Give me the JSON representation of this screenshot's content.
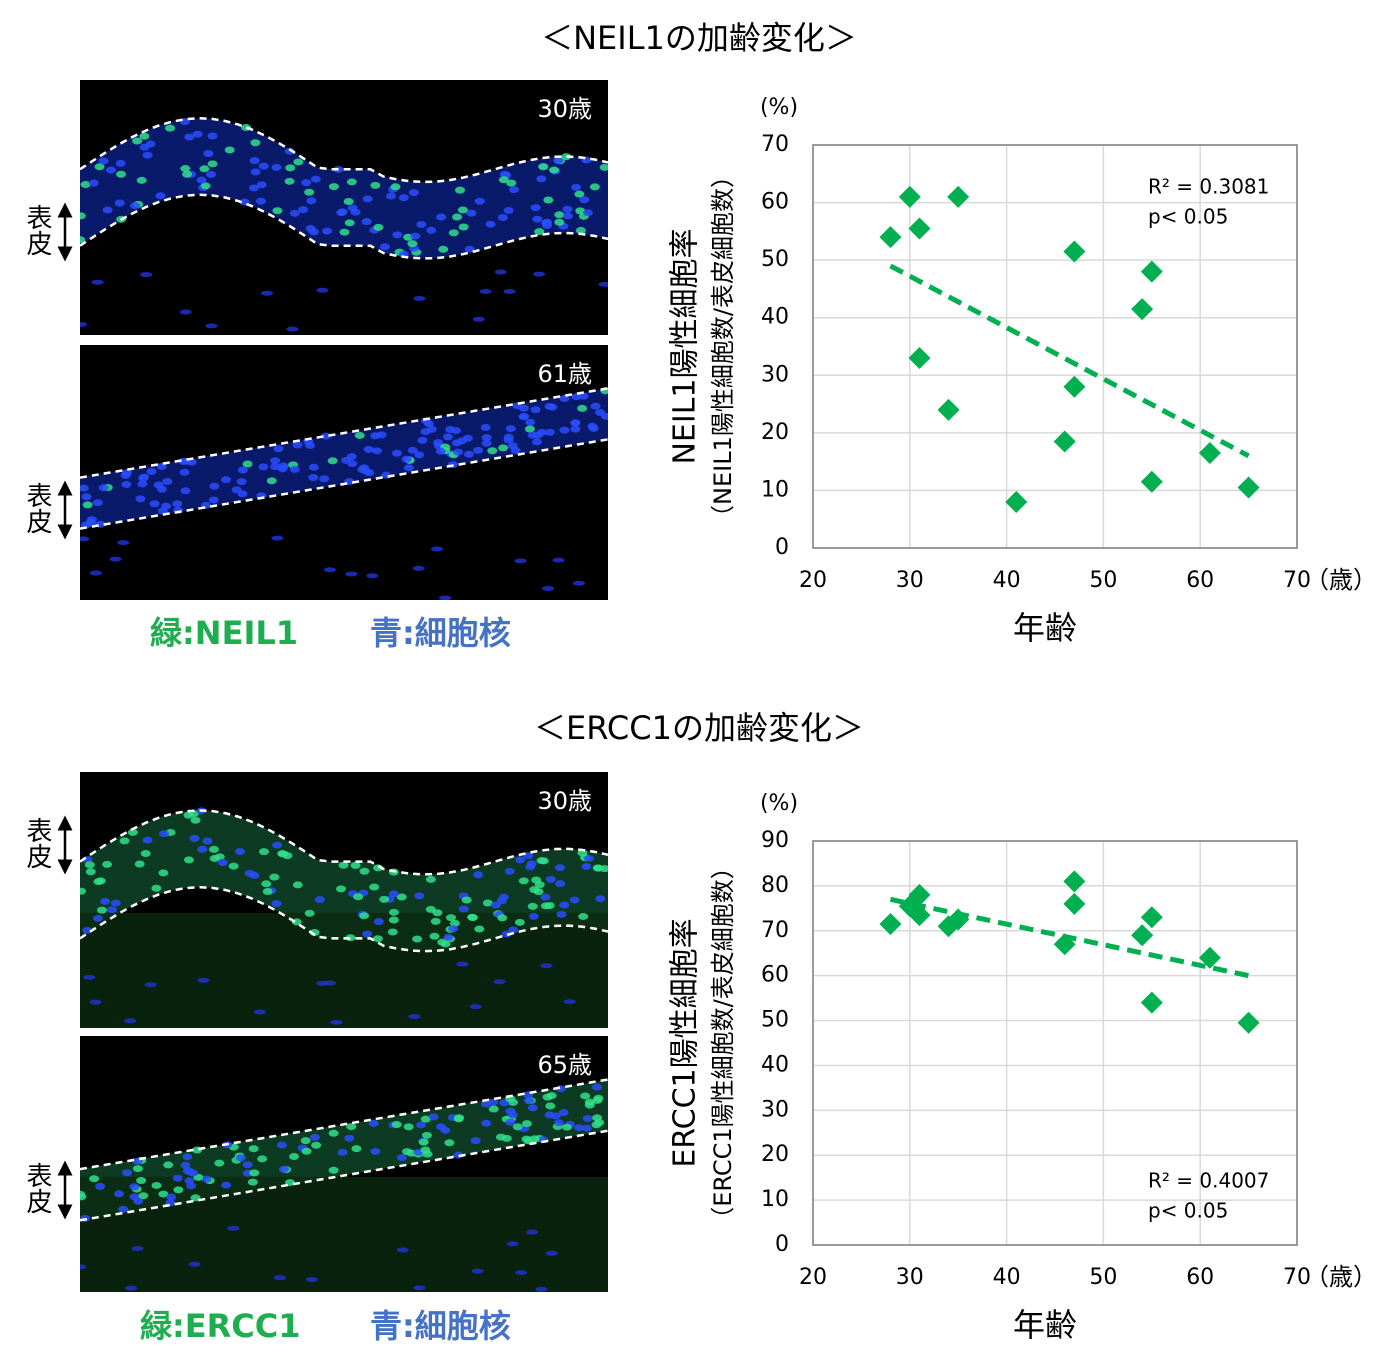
{
  "chart_data": [
    {
      "type": "scatter",
      "title": "＜NEIL1の加齢変化＞",
      "x": [
        28,
        30,
        31,
        35,
        31,
        34,
        41,
        46,
        47,
        47,
        54,
        55,
        55,
        61,
        65
      ],
      "values": [
        54,
        61,
        55.5,
        61,
        33,
        24,
        8,
        18.5,
        51.5,
        28,
        41.5,
        48,
        11.5,
        16.5,
        10.5
      ],
      "color": "#00b050",
      "marker": "diamond",
      "trendline": {
        "x": [
          28,
          65
        ],
        "values": [
          49,
          16
        ],
        "style": "dashed"
      },
      "xlim": [
        20,
        70
      ],
      "ylim": [
        0,
        70
      ],
      "xticks": [
        20,
        30,
        40,
        50,
        60,
        70
      ],
      "yticks": [
        0,
        10,
        20,
        30,
        40,
        50,
        60,
        70
      ],
      "grid": true,
      "x_label": "年齢",
      "x_unit": "（歳）",
      "y_label": "NEIL1陽性細胞率",
      "y_sublabel": "（NEIL1陽性細胞数/表皮細胞数）",
      "y_unit": "(%)",
      "annotations": [
        "R² = 0.3081",
        "p< 0.05"
      ],
      "annotation_corner": "upper right"
    },
    {
      "type": "scatter",
      "title": "＜ERCC1の加齢変化＞",
      "x": [
        28,
        30,
        31,
        31,
        34,
        35,
        46,
        47,
        47,
        54,
        55,
        55,
        61,
        65
      ],
      "values": [
        71.5,
        75.5,
        78,
        73.5,
        71,
        72.5,
        67,
        81,
        76,
        69,
        73,
        54,
        64,
        49.5
      ],
      "color": "#00b050",
      "marker": "diamond",
      "trendline": {
        "x": [
          28,
          65
        ],
        "values": [
          77,
          60
        ],
        "style": "dashed"
      },
      "xlim": [
        20,
        70
      ],
      "ylim": [
        0,
        90
      ],
      "xticks": [
        20,
        30,
        40,
        50,
        60,
        70
      ],
      "yticks": [
        0,
        10,
        20,
        30,
        40,
        50,
        60,
        70,
        80,
        90
      ],
      "grid": true,
      "x_label": "年齢",
      "x_unit": "（歳）",
      "y_label": "ERCC1陽性細胞率",
      "y_sublabel": "（ERCC1陽性細胞数/表皮細胞数）",
      "y_unit": "(%)",
      "annotations": [
        "R² = 0.4007",
        "p< 0.05"
      ],
      "annotation_corner": "lower right"
    }
  ],
  "micrographs": [
    {
      "panels": [
        {
          "age": "30歳",
          "region": "表皮"
        },
        {
          "age": "61歳",
          "region": "表皮"
        }
      ],
      "legend": [
        {
          "text": "緑:NEIL1",
          "color": "#1fae4f"
        },
        {
          "text": "青:細胞核",
          "color": "#4472c4"
        }
      ]
    },
    {
      "panels": [
        {
          "age": "30歳",
          "region": "表皮"
        },
        {
          "age": "65歳",
          "region": "表皮"
        }
      ],
      "legend": [
        {
          "text": "緑:ERCC1",
          "color": "#1fae4f"
        },
        {
          "text": "青:細胞核",
          "color": "#4472c4"
        }
      ]
    }
  ]
}
